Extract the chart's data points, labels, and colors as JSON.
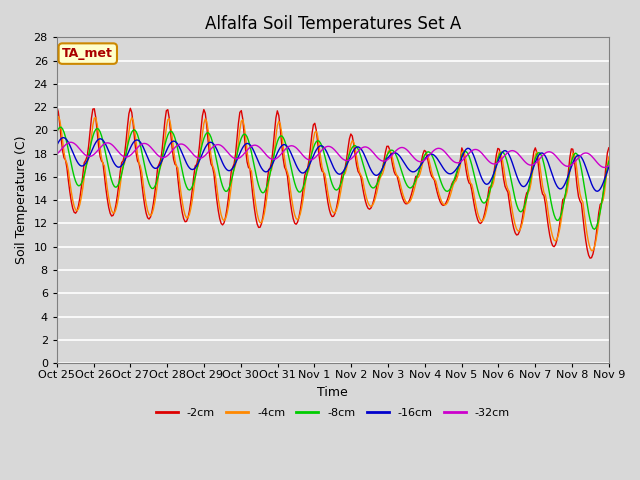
{
  "title": "Alfalfa Soil Temperatures Set A",
  "xlabel": "Time",
  "ylabel": "Soil Temperature (C)",
  "ylim": [
    0,
    28
  ],
  "yticks": [
    0,
    2,
    4,
    6,
    8,
    10,
    12,
    14,
    16,
    18,
    20,
    22,
    24,
    26,
    28
  ],
  "xtick_labels": [
    "Oct 25",
    "Oct 26",
    "Oct 27",
    "Oct 28",
    "Oct 29",
    "Oct 30",
    "Oct 31",
    "Nov 1",
    "Nov 2",
    "Nov 3",
    "Nov 4",
    "Nov 5",
    "Nov 6",
    "Nov 7",
    "Nov 8",
    "Nov 9"
  ],
  "colors": {
    "-2cm": "#dd0000",
    "-4cm": "#ff8800",
    "-8cm": "#00cc00",
    "-16cm": "#0000cc",
    "-32cm": "#cc00cc"
  },
  "legend_labels": [
    "-2cm",
    "-4cm",
    "-8cm",
    "-16cm",
    "-32cm"
  ],
  "fig_facecolor": "#d8d8d8",
  "plot_facecolor": "#d8d8d8",
  "annotation_text": "TA_met",
  "annotation_bg": "#ffffcc",
  "annotation_border": "#cc8800",
  "title_fontsize": 12,
  "axis_label_fontsize": 9,
  "tick_fontsize": 8
}
